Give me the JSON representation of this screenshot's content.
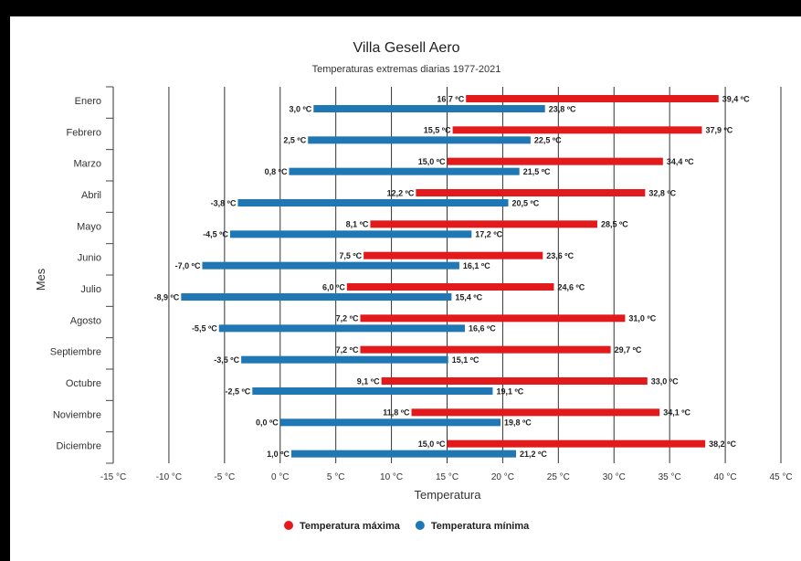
{
  "chart_data": {
    "type": "bar",
    "orientation": "horizontal-floating-range",
    "title": "Villa Gesell Aero",
    "subtitle": "Temperaturas extremas diarias 1977-2021",
    "xlabel": "Temperatura",
    "ylabel": "Mes",
    "xlim": [
      -15,
      45
    ],
    "x_ticks": [
      -15,
      -10,
      -5,
      0,
      5,
      10,
      15,
      20,
      25,
      30,
      35,
      40,
      45
    ],
    "x_tick_labels": [
      "-15 °C",
      "-10 °C",
      "-5 °C",
      "0 °C",
      "5 °C",
      "10 °C",
      "15 °C",
      "20 °C",
      "25 °C",
      "30 °C",
      "35 °C",
      "40 °C",
      "45 °C"
    ],
    "grid": "vertical",
    "legend_position": "bottom",
    "categories": [
      "Enero",
      "Febrero",
      "Marzo",
      "Abril",
      "Mayo",
      "Junio",
      "Julio",
      "Agosto",
      "Septiembre",
      "Octubre",
      "Noviembre",
      "Diciembre"
    ],
    "series": [
      {
        "name": "Temperatura máxima",
        "color": "#e31a1c",
        "low": [
          16.7,
          15.5,
          15.0,
          12.2,
          8.1,
          7.5,
          6.0,
          7.2,
          7.2,
          9.1,
          11.8,
          15.0
        ],
        "high": [
          39.4,
          37.9,
          34.4,
          32.8,
          28.5,
          23.6,
          24.6,
          31.0,
          29.7,
          33.0,
          34.1,
          38.2
        ],
        "low_labels": [
          "16,7 ºC",
          "15,5 ºC",
          "15,0 ºC",
          "12,2 ºC",
          "8,1 ºC",
          "7,5 ºC",
          "6,0 ºC",
          "7,2 ºC",
          "7,2 ºC",
          "9,1 ºC",
          "11,8 ºC",
          "15,0 ºC"
        ],
        "high_labels": [
          "39,4 ºC",
          "37,9 ºC",
          "34,4 ºC",
          "32,8 ºC",
          "28,5 ºC",
          "23,6 ºC",
          "24,6 ºC",
          "31,0 ºC",
          "29,7 ºC",
          "33,0 ºC",
          "34,1 ºC",
          "38,2 ºC"
        ]
      },
      {
        "name": "Temperatura mínima",
        "color": "#1f77b4",
        "low": [
          3.0,
          2.5,
          0.8,
          -3.8,
          -4.5,
          -7.0,
          -8.9,
          -5.5,
          -3.5,
          -2.5,
          0.0,
          1.0
        ],
        "high": [
          23.8,
          22.5,
          21.5,
          20.5,
          17.2,
          16.1,
          15.4,
          16.6,
          15.1,
          19.1,
          19.8,
          21.2
        ],
        "low_labels": [
          "3,0 ºC",
          "2,5 ºC",
          "0,8 ºC",
          "-3,8 ºC",
          "-4,5 ºC",
          "-7,0 ºC",
          "-8,9 ºC",
          "-5,5 ºC",
          "-3,5 ºC",
          "-2,5 ºC",
          "0,0 ºC",
          "1,0 ºC"
        ],
        "high_labels": [
          "23,8 ºC",
          "22,5 ºC",
          "21,5 ºC",
          "20,5 ºC",
          "17,2 ºC",
          "16,1 ºC",
          "15,4 ºC",
          "16,6 ºC",
          "15,1 ºC",
          "19,1 ºC",
          "19,8 ºC",
          "21,2 ºC"
        ]
      }
    ]
  }
}
